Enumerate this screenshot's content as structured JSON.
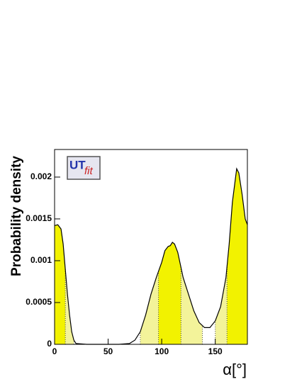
{
  "chart_data": {
    "type": "density",
    "ylabel": "Probability density",
    "xlabel": "α[°]",
    "logo": {
      "main": "UT",
      "sub": "fit"
    },
    "xlim": [
      0,
      180
    ],
    "ylim": [
      0,
      0.00233
    ],
    "xticks": [
      0,
      50,
      100,
      150
    ],
    "yticks": [
      0,
      0.0005,
      0.001,
      0.0015,
      0.002
    ],
    "x": [
      0,
      3,
      6,
      8,
      10,
      12,
      14,
      16,
      18,
      20,
      30,
      60,
      70,
      75,
      80,
      85,
      90,
      95,
      100,
      103,
      106,
      108,
      110,
      112,
      115,
      120,
      125,
      130,
      135,
      140,
      145,
      150,
      155,
      160,
      163,
      166,
      170,
      172,
      175,
      178,
      180
    ],
    "values": [
      0.00142,
      0.00143,
      0.00138,
      0.0012,
      0.0009,
      0.0006,
      0.00035,
      0.00015,
      5e-05,
      1e-05,
      0,
      0,
      1e-05,
      5e-05,
      0.00015,
      0.00035,
      0.0006,
      0.0008,
      0.00098,
      0.00112,
      0.00117,
      0.00118,
      0.00122,
      0.0012,
      0.0011,
      0.0008,
      0.0006,
      0.0004,
      0.00026,
      0.0002,
      0.0002,
      0.00028,
      0.00045,
      0.0008,
      0.0012,
      0.0017,
      0.0021,
      0.00205,
      0.0018,
      0.0015,
      0.00143
    ],
    "color": "#000000",
    "bands": [
      {
        "from": 10,
        "to": 18,
        "color": "#f3f39a"
      },
      {
        "from": 80,
        "to": 97,
        "color": "#f3f39a"
      },
      {
        "from": 118,
        "to": 138,
        "color": "#f3f39a"
      },
      {
        "from": 150,
        "to": 161,
        "color": "#f3f39a"
      },
      {
        "from": 0,
        "to": 10,
        "color": "#f2f200"
      },
      {
        "from": 97,
        "to": 118,
        "color": "#f2f200"
      },
      {
        "from": 161,
        "to": 180,
        "color": "#f2f200"
      }
    ]
  }
}
